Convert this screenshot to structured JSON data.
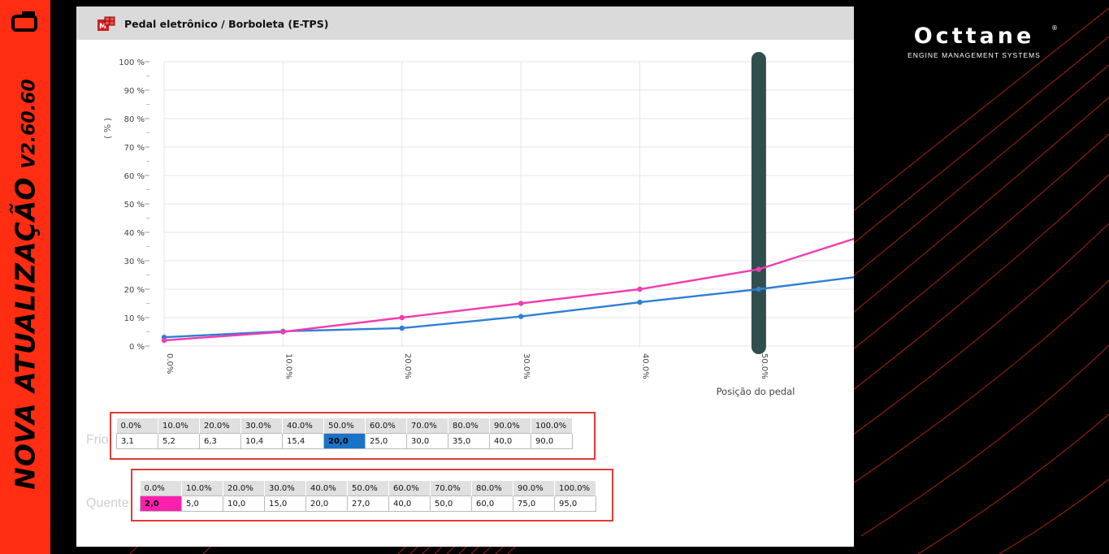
{
  "banner": {
    "title": "NOVA ATUALIZAÇÃO",
    "version": "V2.60.60",
    "color": "#ff2d12"
  },
  "brand": {
    "name": "Octtane",
    "registered": "®",
    "tagline": "ENGINE MANAGEMENT SYSTEMS"
  },
  "panel": {
    "title": "Pedal eletrônico / Borboleta (E-TPS)",
    "icon": "etps-table-icon"
  },
  "chart_data": {
    "type": "line",
    "title": "",
    "xlabel": "Posição do pedal",
    "ylabel": "( % )",
    "x": [
      0,
      10,
      20,
      30,
      40,
      50
    ],
    "x_tick_labels": [
      "0.0%",
      "10.0%",
      "20.0%",
      "30.0%",
      "40.0%",
      "50.0%"
    ],
    "y_tick_labels": [
      "0 %",
      "10 %",
      "20 %",
      "30 %",
      "40 %",
      "50 %",
      "60 %",
      "70 %",
      "80 %",
      "90 %",
      "100 %"
    ],
    "xlim": [
      0,
      58
    ],
    "ylim": [
      0,
      100
    ],
    "grid": true,
    "cursor_x": 50,
    "series": [
      {
        "values": [
          3.1,
          5.2,
          6.3,
          10.4,
          15.4,
          20.0
        ],
        "color": "#2d7fd4",
        "end_value": 24.2
      },
      {
        "values": [
          2.0,
          5.0,
          10.0,
          15.0,
          20.0,
          27.0
        ],
        "color": "#f23bb0",
        "end_value": 37.7
      }
    ]
  },
  "tables": [
    {
      "row_label": "Frio",
      "headers": [
        "0.0%",
        "10.0%",
        "20.0%",
        "30.0%",
        "40.0%",
        "50.0%",
        "60.0%",
        "70.0%",
        "80.0%",
        "90.0%",
        "100.0%"
      ],
      "values": [
        "3,1",
        "5,2",
        "6,3",
        "10,4",
        "15,4",
        "20,0",
        "25,0",
        "30,0",
        "35,0",
        "40,0",
        "90,0"
      ],
      "selected_index": 5,
      "highlight": "#1b73c7"
    },
    {
      "row_label": "Quente",
      "headers": [
        "0.0%",
        "10.0%",
        "20.0%",
        "30.0%",
        "40.0%",
        "50.0%",
        "60.0%",
        "70.0%",
        "80.0%",
        "90.0%",
        "100.0%"
      ],
      "values": [
        "2,0",
        "5,0",
        "10,0",
        "15,0",
        "20,0",
        "27,0",
        "40,0",
        "50,0",
        "60,0",
        "75,0",
        "95,0"
      ],
      "selected_index": 0,
      "highlight": "#ff1fae"
    }
  ]
}
